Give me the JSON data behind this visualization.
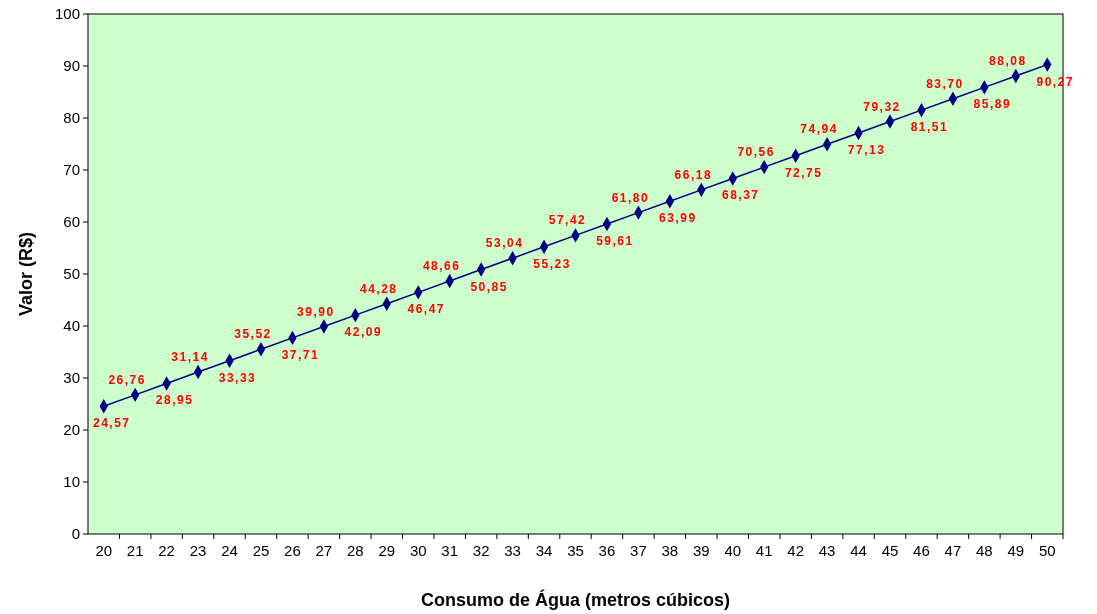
{
  "chart_data": {
    "type": "line",
    "xlabel": "Consumo de Água (metros cúbicos)",
    "ylabel": "Valor (R$)",
    "categories": [
      "20",
      "21",
      "22",
      "23",
      "24",
      "25",
      "26",
      "27",
      "28",
      "29",
      "30",
      "31",
      "32",
      "33",
      "34",
      "35",
      "36",
      "37",
      "38",
      "39",
      "40",
      "41",
      "42",
      "43",
      "44",
      "45",
      "46",
      "47",
      "48",
      "49",
      "50"
    ],
    "series": [
      {
        "color": "#000080",
        "values": [
          24.57,
          26.76,
          28.95,
          31.14,
          33.33,
          35.52,
          37.71,
          39.9,
          42.09,
          44.28,
          46.47,
          48.66,
          50.85,
          53.04,
          55.23,
          57.42,
          59.61,
          61.8,
          63.99,
          66.18,
          68.37,
          70.56,
          72.75,
          74.94,
          77.13,
          79.32,
          81.51,
          83.7,
          85.89,
          88.08,
          90.27
        ],
        "value_labels": [
          "24,57",
          "26,76",
          "28,95",
          "31,14",
          "33,33",
          "35,52",
          "37,71",
          "39,90",
          "42,09",
          "44,28",
          "46,47",
          "48,66",
          "50,85",
          "53,04",
          "55,23",
          "57,42",
          "59,61",
          "61,80",
          "63,99",
          "66,18",
          "68,37",
          "70,56",
          "72,75",
          "74,94",
          "77,13",
          "79,32",
          "81,51",
          "83,70",
          "85,89",
          "88,08",
          "90,27"
        ]
      }
    ],
    "ylim": [
      0,
      100
    ],
    "yticks": [
      0,
      10,
      20,
      30,
      40,
      50,
      60,
      70,
      80,
      90,
      100
    ],
    "marker": "diamond",
    "line_style": "solid",
    "grid": false
  }
}
